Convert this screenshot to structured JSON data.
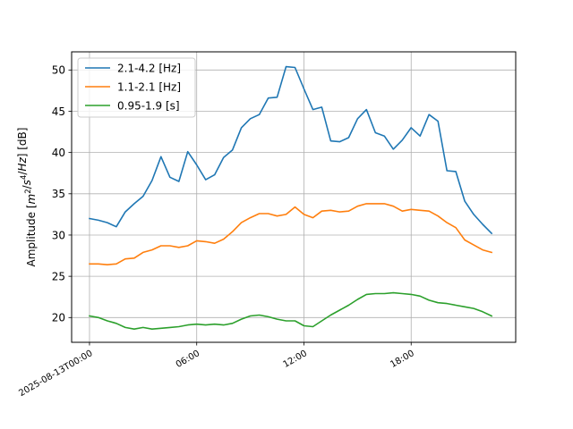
{
  "chart_data": {
    "type": "line",
    "xlabel": "",
    "ylabel_parts": [
      "Amplitude [",
      "m",
      "2",
      "/",
      "s",
      "4",
      "/",
      "Hz",
      "] [dB]"
    ],
    "ylim": [
      17,
      52.2
    ],
    "y_ticks": [
      20,
      25,
      30,
      35,
      40,
      45,
      50
    ],
    "x_hours_range": [
      -1.0,
      23.85
    ],
    "x_ticks": [
      {
        "hour": 0,
        "label": "2025-08-13T00:00"
      },
      {
        "hour": 6,
        "label": "06:00"
      },
      {
        "hour": 12,
        "label": "12:00"
      },
      {
        "hour": 18,
        "label": "18:00"
      }
    ],
    "grid": true,
    "legend_position": "top-left",
    "x_hours": [
      0,
      0.5,
      1,
      1.5,
      2,
      2.5,
      3,
      3.5,
      4,
      4.5,
      5,
      5.5,
      6,
      6.5,
      7,
      7.5,
      8,
      8.5,
      9,
      9.5,
      10,
      10.5,
      11,
      11.5,
      12,
      12.5,
      13,
      13.5,
      14,
      14.5,
      15,
      15.5,
      16,
      16.5,
      17,
      17.5,
      18,
      18.5,
      19,
      19.5,
      20,
      20.5,
      21,
      21.5,
      22,
      22.5
    ],
    "series": [
      {
        "name": "2.1-4.2 [Hz]",
        "color": "#1f77b4",
        "values": [
          32.0,
          31.8,
          31.5,
          31.0,
          32.8,
          33.8,
          34.7,
          36.6,
          39.5,
          37.0,
          36.5,
          40.1,
          38.5,
          36.7,
          37.3,
          39.4,
          40.3,
          43.0,
          44.1,
          44.6,
          46.6,
          46.7,
          50.4,
          50.3,
          47.7,
          45.2,
          45.5,
          41.4,
          41.3,
          41.8,
          44.1,
          45.2,
          42.4,
          42.0,
          40.4,
          41.5,
          43.0,
          42.0,
          44.6,
          43.8,
          37.8,
          37.7,
          34.1,
          32.5,
          31.3,
          30.2
        ]
      },
      {
        "name": "1.1-2.1 [Hz]",
        "color": "#ff7f0e",
        "values": [
          26.5,
          26.5,
          26.4,
          26.5,
          27.1,
          27.2,
          27.9,
          28.2,
          28.7,
          28.7,
          28.5,
          28.7,
          29.3,
          29.2,
          29.0,
          29.5,
          30.4,
          31.5,
          32.1,
          32.6,
          32.6,
          32.3,
          32.5,
          33.4,
          32.5,
          32.1,
          32.9,
          33.0,
          32.8,
          32.9,
          33.5,
          33.8,
          33.8,
          33.8,
          33.5,
          32.9,
          33.1,
          33.0,
          32.9,
          32.3,
          31.5,
          30.9,
          29.4,
          28.8,
          28.2,
          27.9
        ]
      },
      {
        "name": "0.95-1.9 [s]",
        "color": "#2ca02c",
        "values": [
          20.2,
          20.0,
          19.6,
          19.3,
          18.8,
          18.6,
          18.8,
          18.6,
          18.7,
          18.8,
          18.9,
          19.1,
          19.2,
          19.1,
          19.2,
          19.1,
          19.3,
          19.8,
          20.2,
          20.3,
          20.1,
          19.8,
          19.6,
          19.6,
          19.0,
          18.9,
          19.6,
          20.3,
          20.9,
          21.5,
          22.2,
          22.8,
          22.9,
          22.9,
          23.0,
          22.9,
          22.8,
          22.6,
          22.1,
          21.8,
          21.7,
          21.5,
          21.3,
          21.1,
          20.7,
          20.2
        ]
      }
    ]
  }
}
